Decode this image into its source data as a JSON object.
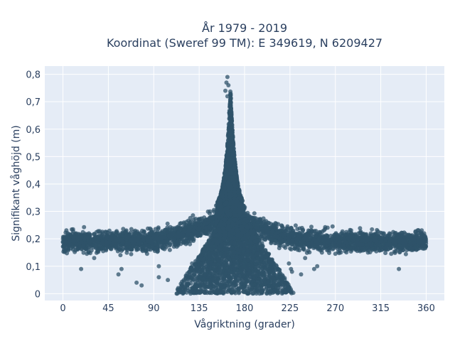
{
  "chart_data": {
    "type": "scatter",
    "title": "År 1979 - 2019",
    "subtitle": "Koordinat (Sweref 99 TM): E 349619, N 6209427",
    "xlabel": "Vågriktning (grader)",
    "ylabel": "Signifikant våghöjd (m)",
    "xlim": [
      -18,
      378
    ],
    "ylim": [
      -0.025,
      0.83
    ],
    "x_ticks": [
      0,
      45,
      90,
      135,
      180,
      225,
      270,
      315,
      360
    ],
    "x_tick_labels": [
      "0",
      "45",
      "90",
      "135",
      "180",
      "225",
      "270",
      "315",
      "360"
    ],
    "y_ticks": [
      0,
      0.1,
      0.2,
      0.3,
      0.4,
      0.5,
      0.6,
      0.7,
      0.8
    ],
    "y_tick_labels": [
      "0",
      "0,1",
      "0,2",
      "0,3",
      "0,4",
      "0,5",
      "0,6",
      "0,7",
      "0,8"
    ],
    "grid": true,
    "marker_color": "#2f5369",
    "plot_background": "#e5ecf6",
    "points_description_samples": [
      {
        "x": 0,
        "y": 0.19
      },
      {
        "x": 45,
        "y": 0.19
      },
      {
        "x": 90,
        "y": 0.2
      },
      {
        "x": 135,
        "y": 0.27
      },
      {
        "x": 163,
        "y": 0.79
      },
      {
        "x": 180,
        "y": 0.3
      },
      {
        "x": 225,
        "y": 0.26
      },
      {
        "x": 270,
        "y": 0.22
      },
      {
        "x": 315,
        "y": 0.2
      },
      {
        "x": 360,
        "y": 0.19
      },
      {
        "x": 18,
        "y": 0.09
      },
      {
        "x": 75,
        "y": 0.04
      },
      {
        "x": 150,
        "y": 0.01
      },
      {
        "x": 220,
        "y": 0.05
      },
      {
        "x": 333,
        "y": 0.09
      }
    ],
    "outliers": [
      {
        "x": 18,
        "y": 0.09
      },
      {
        "x": 31,
        "y": 0.13
      },
      {
        "x": 55,
        "y": 0.07
      },
      {
        "x": 58,
        "y": 0.09
      },
      {
        "x": 73,
        "y": 0.04
      },
      {
        "x": 78,
        "y": 0.03
      },
      {
        "x": 95,
        "y": 0.1
      },
      {
        "x": 95,
        "y": 0.06
      },
      {
        "x": 104,
        "y": 0.05
      },
      {
        "x": 128,
        "y": 0.11
      },
      {
        "x": 130,
        "y": 0.07
      },
      {
        "x": 131,
        "y": 0.03
      },
      {
        "x": 136,
        "y": 0.06
      },
      {
        "x": 224,
        "y": 0.11
      },
      {
        "x": 226,
        "y": 0.09
      },
      {
        "x": 227,
        "y": 0.08
      },
      {
        "x": 236,
        "y": 0.07
      },
      {
        "x": 240,
        "y": 0.13
      },
      {
        "x": 249,
        "y": 0.09
      },
      {
        "x": 252,
        "y": 0.1
      },
      {
        "x": 333,
        "y": 0.09
      }
    ]
  }
}
